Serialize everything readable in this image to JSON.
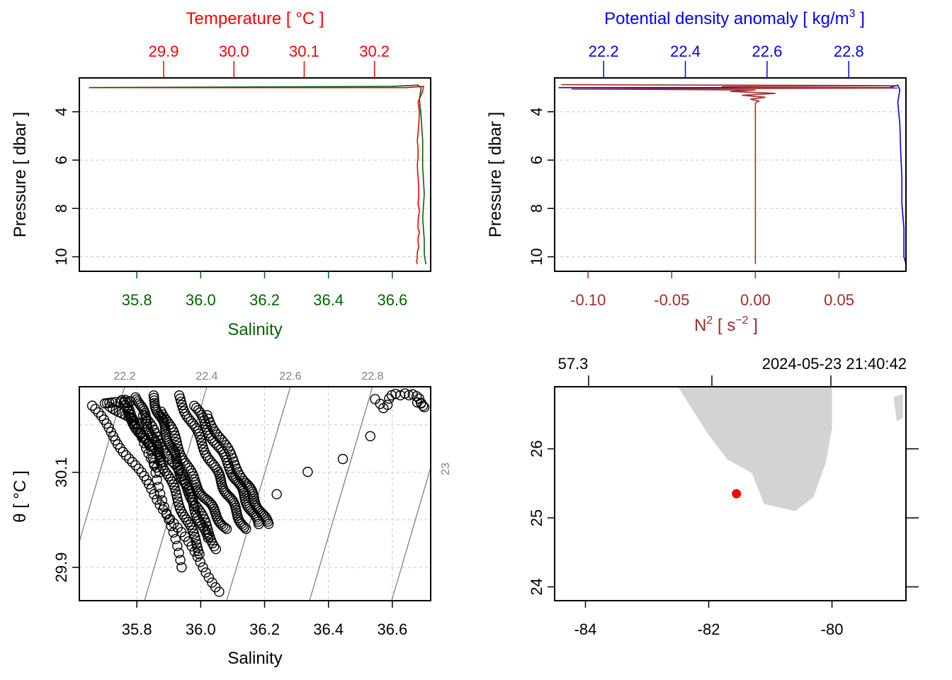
{
  "chart_data": [
    {
      "panel": "top-left",
      "type": "line",
      "y_axis": {
        "label": "Pressure [ dbar ]",
        "ticks": [
          4,
          6,
          8,
          10
        ],
        "ylim": [
          10.6,
          2.6
        ],
        "inverted": true
      },
      "bottom_axis": {
        "label": "Salinity",
        "color": "#006400",
        "ticks": [
          "35.8",
          "36.0",
          "36.2",
          "36.4",
          "36.6"
        ],
        "xlim": [
          35.62,
          36.72
        ]
      },
      "top_axis": {
        "label": "Temperature [ °C ]",
        "color": "#ff0000",
        "ticks": [
          "29.9",
          "30.0",
          "30.1",
          "30.2"
        ],
        "xlim": [
          29.78,
          30.28
        ]
      },
      "series": [
        {
          "name": "Temperature",
          "color": "#ff0000",
          "axis": "top",
          "x": [
            29.8,
            30.23,
            30.245,
            30.27,
            30.268,
            30.262,
            30.264,
            30.263,
            30.261,
            30.262,
            30.262,
            30.261,
            30.262,
            30.263,
            30.263,
            30.262,
            30.264,
            30.262,
            30.262,
            30.264,
            30.262,
            30.262,
            30.263,
            30.261,
            30.261,
            30.26,
            30.261
          ],
          "p": [
            3.0,
            3.0,
            3.0,
            2.95,
            3.2,
            3.6,
            4.0,
            4.6,
            5.2,
            5.5,
            5.9,
            6.2,
            6.7,
            7.1,
            7.5,
            7.8,
            8.1,
            8.5,
            8.8,
            9.0,
            9.2,
            9.4,
            9.6,
            9.8,
            10.0,
            10.2,
            10.3
          ]
        },
        {
          "name": "Salinity",
          "color": "#006400",
          "axis": "bottom",
          "x": [
            35.65,
            36.6,
            36.68,
            36.69,
            36.685,
            36.69,
            36.695,
            36.695,
            36.7,
            36.695,
            36.7,
            36.7,
            36.705
          ],
          "p": [
            3.0,
            2.95,
            2.9,
            3.0,
            3.5,
            4.2,
            5.2,
            6.3,
            7.4,
            8.4,
            9.3,
            9.9,
            10.3
          ]
        }
      ]
    },
    {
      "panel": "top-right",
      "type": "line",
      "y_axis": {
        "label": "Pressure [ dbar ]",
        "ticks": [
          4,
          6,
          8,
          10
        ],
        "ylim": [
          10.6,
          2.6
        ],
        "inverted": true
      },
      "bottom_axis": {
        "label": "N² [ s⁻² ]",
        "label_base": "N",
        "label_unit": "[ s",
        "label_exp2": "−2",
        "label_close": " ]",
        "color": "#a52a2a",
        "ticks": [
          "-0.10",
          "-0.05",
          "0.00",
          "0.05"
        ],
        "xlim": [
          -0.12,
          0.09
        ]
      },
      "top_axis": {
        "label": "Potential density anomaly [ kg/m³ ]",
        "label_base": "Potential density anomaly [ kg/m",
        "label_close": " ]",
        "color": "#0000ff",
        "ticks": [
          "22.2",
          "22.4",
          "22.6",
          "22.8"
        ],
        "xlim": [
          22.08,
          22.94
        ]
      },
      "series": [
        {
          "name": "Potential density anomaly",
          "color": "#0000ff",
          "axis": "top",
          "x": [
            22.09,
            22.8,
            22.9,
            22.92,
            22.925,
            22.92,
            22.925,
            22.927,
            22.93,
            22.93,
            22.935,
            22.935,
            22.935,
            22.94
          ],
          "p": [
            3.0,
            3.0,
            3.0,
            2.9,
            3.1,
            3.6,
            4.5,
            5.6,
            6.7,
            7.8,
            8.8,
            9.6,
            10.0,
            10.3
          ]
        },
        {
          "name": "N2",
          "color": "#a52a2a",
          "axis": "bottom",
          "x": [
            -0.116,
            0.085,
            -0.02,
            0.0,
            0.085,
            -0.11,
            0.0,
            -0.015,
            0.012,
            -0.008,
            0.006,
            -0.003,
            0.002,
            0.0,
            0.0,
            0.0
          ],
          "p": [
            2.88,
            2.92,
            2.96,
            3.0,
            3.02,
            3.06,
            3.1,
            3.16,
            3.24,
            3.32,
            3.4,
            3.48,
            3.56,
            3.64,
            6.0,
            10.3
          ]
        }
      ]
    },
    {
      "panel": "bottom-left",
      "type": "scatter",
      "x_axis": {
        "label": "Salinity",
        "ticks": [
          "35.8",
          "36.0",
          "36.2",
          "36.4",
          "36.6"
        ],
        "xlim": [
          35.62,
          36.72
        ]
      },
      "y_axis": {
        "label": "θ [ °C ]",
        "ticks": [
          "29.9",
          "30.1"
        ],
        "ylim": [
          29.83,
          30.28
        ]
      },
      "isopycnals": {
        "color": "#808080",
        "labels": [
          "22.2",
          "22.4",
          "22.6",
          "22.8",
          "23"
        ]
      },
      "segments": [
        {
          "s": [
            35.66,
            35.84,
            36.06
          ],
          "t": [
            30.24,
            30.07,
            29.85
          ],
          "n": 44
        },
        {
          "s": [
            35.75,
            35.84,
            35.94
          ],
          "t": [
            30.25,
            30.15,
            29.9
          ],
          "n": 36
        },
        {
          "s": [
            35.8,
            35.88,
            36.0
          ],
          "t": [
            30.26,
            30.12,
            29.93
          ],
          "n": 60
        },
        {
          "s": [
            35.85,
            35.92,
            36.02
          ],
          "t": [
            30.26,
            30.13,
            29.96
          ],
          "n": 60
        },
        {
          "s": [
            35.82,
            35.95,
            36.05
          ],
          "t": [
            30.22,
            30.08,
            29.94
          ],
          "n": 44
        },
        {
          "s": [
            35.88,
            35.98,
            36.08
          ],
          "t": [
            30.23,
            30.08,
            29.98
          ],
          "n": 50
        },
        {
          "s": [
            35.93,
            36.05,
            36.14
          ],
          "t": [
            30.26,
            30.1,
            29.98
          ],
          "n": 56
        },
        {
          "s": [
            35.98,
            36.1,
            36.18
          ],
          "t": [
            30.24,
            30.1,
            29.99
          ],
          "n": 52
        },
        {
          "s": [
            36.02,
            36.14,
            36.21
          ],
          "t": [
            30.22,
            30.08,
            29.99
          ],
          "n": 44
        },
        {
          "s": [
            35.72,
            35.8,
            35.87
          ],
          "t": [
            30.24,
            30.2,
            30.1
          ],
          "n": 20
        },
        {
          "s": [
            35.76,
            35.8,
            35.88
          ],
          "t": [
            30.25,
            30.2,
            30.12
          ],
          "n": 16
        },
        {
          "s": [
            35.7,
            35.73,
            35.78
          ],
          "t": [
            30.245,
            30.25,
            30.25
          ],
          "n": 8
        }
      ],
      "points": [
        {
          "s": 36.238,
          "t": 30.054
        },
        {
          "s": 36.335,
          "t": 30.101
        },
        {
          "s": 36.445,
          "t": 30.128
        },
        {
          "s": 36.531,
          "t": 30.176
        },
        {
          "s": 36.546,
          "t": 30.254
        },
        {
          "s": 36.562,
          "t": 30.244
        },
        {
          "s": 36.572,
          "t": 30.235
        },
        {
          "s": 36.585,
          "t": 30.242
        },
        {
          "s": 36.59,
          "t": 30.255
        },
        {
          "s": 36.598,
          "t": 30.262
        },
        {
          "s": 36.61,
          "t": 30.265
        },
        {
          "s": 36.625,
          "t": 30.262
        },
        {
          "s": 36.64,
          "t": 30.266
        },
        {
          "s": 36.652,
          "t": 30.262
        },
        {
          "s": 36.664,
          "t": 30.264
        },
        {
          "s": 36.676,
          "t": 30.26
        },
        {
          "s": 36.684,
          "t": 30.255
        },
        {
          "s": 36.69,
          "t": 30.246
        },
        {
          "s": 36.696,
          "t": 30.24
        },
        {
          "s": 36.7,
          "t": 30.237
        },
        {
          "s": 36.69,
          "t": 30.245
        },
        {
          "s": 36.678,
          "t": 30.247
        }
      ]
    },
    {
      "panel": "bottom-right",
      "type": "map",
      "x_axis": {
        "ticks": [
          "-84",
          "-82",
          "-80"
        ],
        "xlim": [
          -84.5,
          -78.8
        ]
      },
      "y_axis": {
        "ticks": [
          "24",
          "25",
          "26"
        ],
        "ylim": [
          23.8,
          26.9
        ]
      },
      "top_labels": {
        "left": "57.3",
        "right": "2024-05-23 21:40:42"
      },
      "station": {
        "lon": -81.55,
        "lat": 25.35,
        "color": "#ff0000"
      },
      "land_color": "#d3d3d3",
      "coastline": [
        {
          "lon": -82.5,
          "lat": 26.9
        },
        {
          "lon": -80.0,
          "lat": 26.9
        },
        {
          "lon": -80.0,
          "lat": 26.3
        },
        {
          "lon": -80.1,
          "lat": 25.8
        },
        {
          "lon": -80.3,
          "lat": 25.3
        },
        {
          "lon": -80.6,
          "lat": 25.1
        },
        {
          "lon": -81.1,
          "lat": 25.2
        },
        {
          "lon": -81.3,
          "lat": 25.65
        },
        {
          "lon": -81.7,
          "lat": 25.85
        },
        {
          "lon": -82.0,
          "lat": 26.2
        },
        {
          "lon": -82.5,
          "lat": 26.9
        }
      ],
      "island": [
        {
          "lon": -78.85,
          "lat": 26.8
        },
        {
          "lon": -79.0,
          "lat": 26.75
        },
        {
          "lon": -78.95,
          "lat": 26.4
        },
        {
          "lon": -78.85,
          "lat": 26.45
        }
      ]
    }
  ]
}
